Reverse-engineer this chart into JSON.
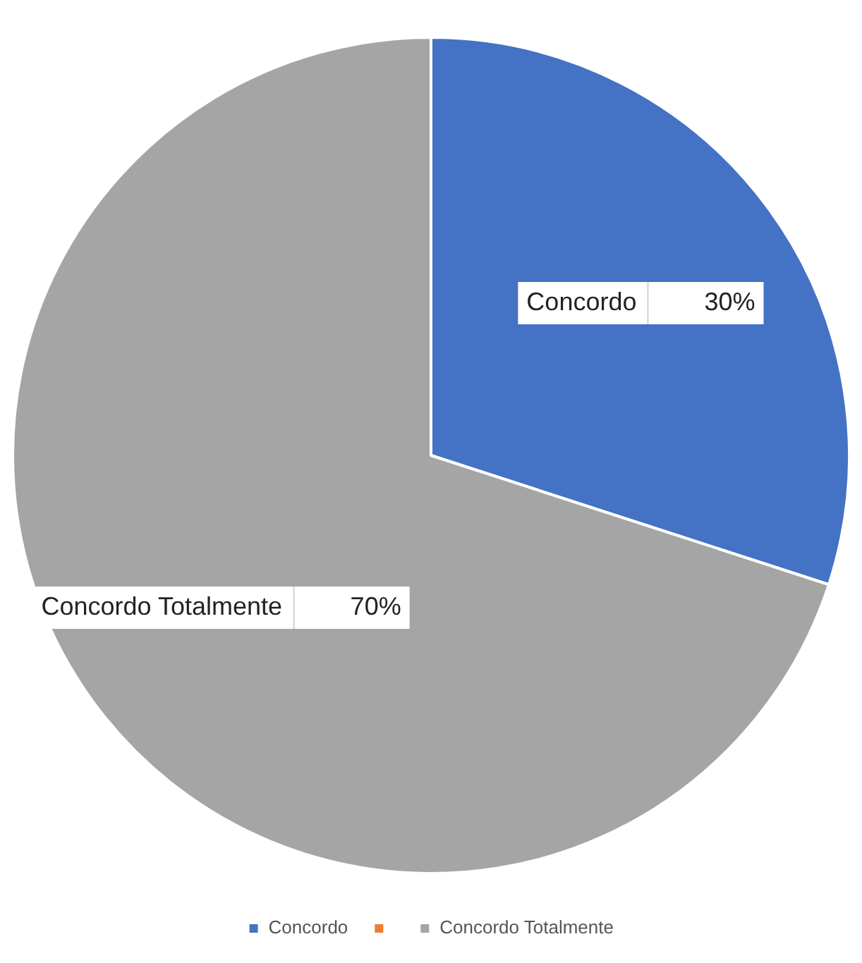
{
  "chart_data": {
    "type": "pie",
    "categories": [
      "Concordo",
      null,
      "Concordo Totalmente"
    ],
    "values": [
      30,
      0,
      70
    ],
    "colors": [
      "#4472c4",
      "#ed7d31",
      "#a5a5a5"
    ],
    "value_labels": [
      "30%",
      null,
      "70%"
    ],
    "legend": "bottom"
  }
}
